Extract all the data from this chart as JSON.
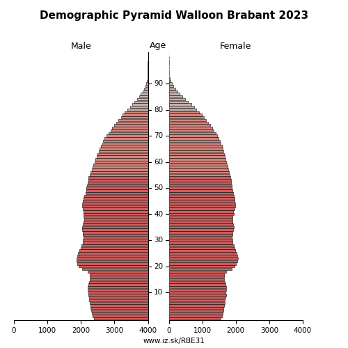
{
  "title": "Demographic Pyramid Walloon Brabant 2023",
  "label_male": "Male",
  "label_female": "Female",
  "label_age": "Age",
  "footer": "www.iz.sk/RBE31",
  "xlim": 4000,
  "bar_color_young": "#cd5c5c",
  "bar_color_mid": "#d4837a",
  "bar_color_old": "#c8b0aa",
  "bar_edge": "#000000",
  "ages": [
    0,
    1,
    2,
    3,
    4,
    5,
    6,
    7,
    8,
    9,
    10,
    11,
    12,
    13,
    14,
    15,
    16,
    17,
    18,
    19,
    20,
    21,
    22,
    23,
    24,
    25,
    26,
    27,
    28,
    29,
    30,
    31,
    32,
    33,
    34,
    35,
    36,
    37,
    38,
    39,
    40,
    41,
    42,
    43,
    44,
    45,
    46,
    47,
    48,
    49,
    50,
    51,
    52,
    53,
    54,
    55,
    56,
    57,
    58,
    59,
    60,
    61,
    62,
    63,
    64,
    65,
    66,
    67,
    68,
    69,
    70,
    71,
    72,
    73,
    74,
    75,
    76,
    77,
    78,
    79,
    80,
    81,
    82,
    83,
    84,
    85,
    86,
    87,
    88,
    89,
    90,
    91,
    92,
    93,
    94,
    95,
    96,
    97,
    98,
    99,
    100
  ],
  "male": [
    1620,
    1660,
    1680,
    1700,
    1710,
    1720,
    1740,
    1750,
    1760,
    1770,
    1780,
    1790,
    1790,
    1780,
    1760,
    1740,
    1730,
    1740,
    1800,
    1970,
    2060,
    2100,
    2140,
    2140,
    2110,
    2090,
    2050,
    2010,
    1980,
    1950,
    1940,
    1930,
    1940,
    1950,
    1960,
    1970,
    1950,
    1930,
    1910,
    1920,
    1930,
    1920,
    1950,
    1970,
    1960,
    1940,
    1920,
    1900,
    1870,
    1840,
    1830,
    1810,
    1790,
    1780,
    1770,
    1740,
    1710,
    1680,
    1650,
    1630,
    1590,
    1560,
    1530,
    1500,
    1470,
    1440,
    1400,
    1360,
    1330,
    1290,
    1240,
    1180,
    1120,
    1060,
    1000,
    940,
    880,
    810,
    750,
    690,
    620,
    540,
    470,
    400,
    330,
    270,
    210,
    160,
    110,
    75,
    45,
    28,
    18,
    11,
    7,
    4,
    2,
    1,
    1,
    0,
    0
  ],
  "female": [
    1540,
    1590,
    1620,
    1640,
    1640,
    1650,
    1670,
    1680,
    1700,
    1710,
    1700,
    1710,
    1720,
    1700,
    1680,
    1660,
    1650,
    1660,
    1720,
    1880,
    1970,
    2010,
    2050,
    2060,
    2040,
    2020,
    1990,
    1960,
    1940,
    1910,
    1900,
    1890,
    1900,
    1910,
    1920,
    1940,
    1930,
    1910,
    1900,
    1910,
    1940,
    1930,
    1960,
    1990,
    1990,
    1970,
    1960,
    1950,
    1930,
    1900,
    1890,
    1880,
    1860,
    1850,
    1840,
    1820,
    1800,
    1780,
    1750,
    1730,
    1710,
    1690,
    1670,
    1650,
    1630,
    1610,
    1580,
    1550,
    1520,
    1490,
    1450,
    1400,
    1350,
    1290,
    1230,
    1170,
    1110,
    1050,
    980,
    910,
    830,
    750,
    670,
    580,
    490,
    410,
    330,
    260,
    190,
    130,
    85,
    50,
    32,
    18,
    11,
    6,
    3,
    2,
    1,
    1,
    0
  ],
  "ytick_ages": [
    10,
    20,
    30,
    40,
    50,
    60,
    70,
    80,
    90
  ],
  "xtick_positions": [
    0,
    1000,
    2000,
    3000,
    4000
  ]
}
